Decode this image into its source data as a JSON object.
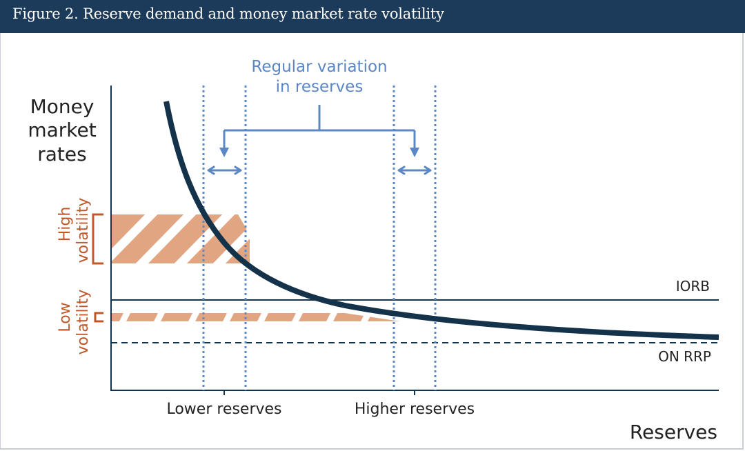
{
  "figure": {
    "title": "Figure 2. Reserve demand and money market rate volatility"
  },
  "diagram": {
    "y_axis_label": [
      "Money",
      "market",
      "rates"
    ],
    "x_axis_label": "Reserves",
    "x_ticks": {
      "lower": "Lower reserves",
      "higher": "Higher reserves"
    },
    "annotation": [
      "Regular variation",
      "in reserves"
    ],
    "lines": {
      "iorb": "IORB",
      "on_rrp": "ON RRP"
    },
    "bands": {
      "high": [
        "High",
        "volatility"
      ],
      "low": [
        "Low",
        "volatility"
      ]
    },
    "colors": {
      "header": "#1c3a5a",
      "curve": "#14324a",
      "accent_blue": "#5b87c5",
      "accent_orange": "#c0582a",
      "hatch": "#e2a582"
    }
  }
}
